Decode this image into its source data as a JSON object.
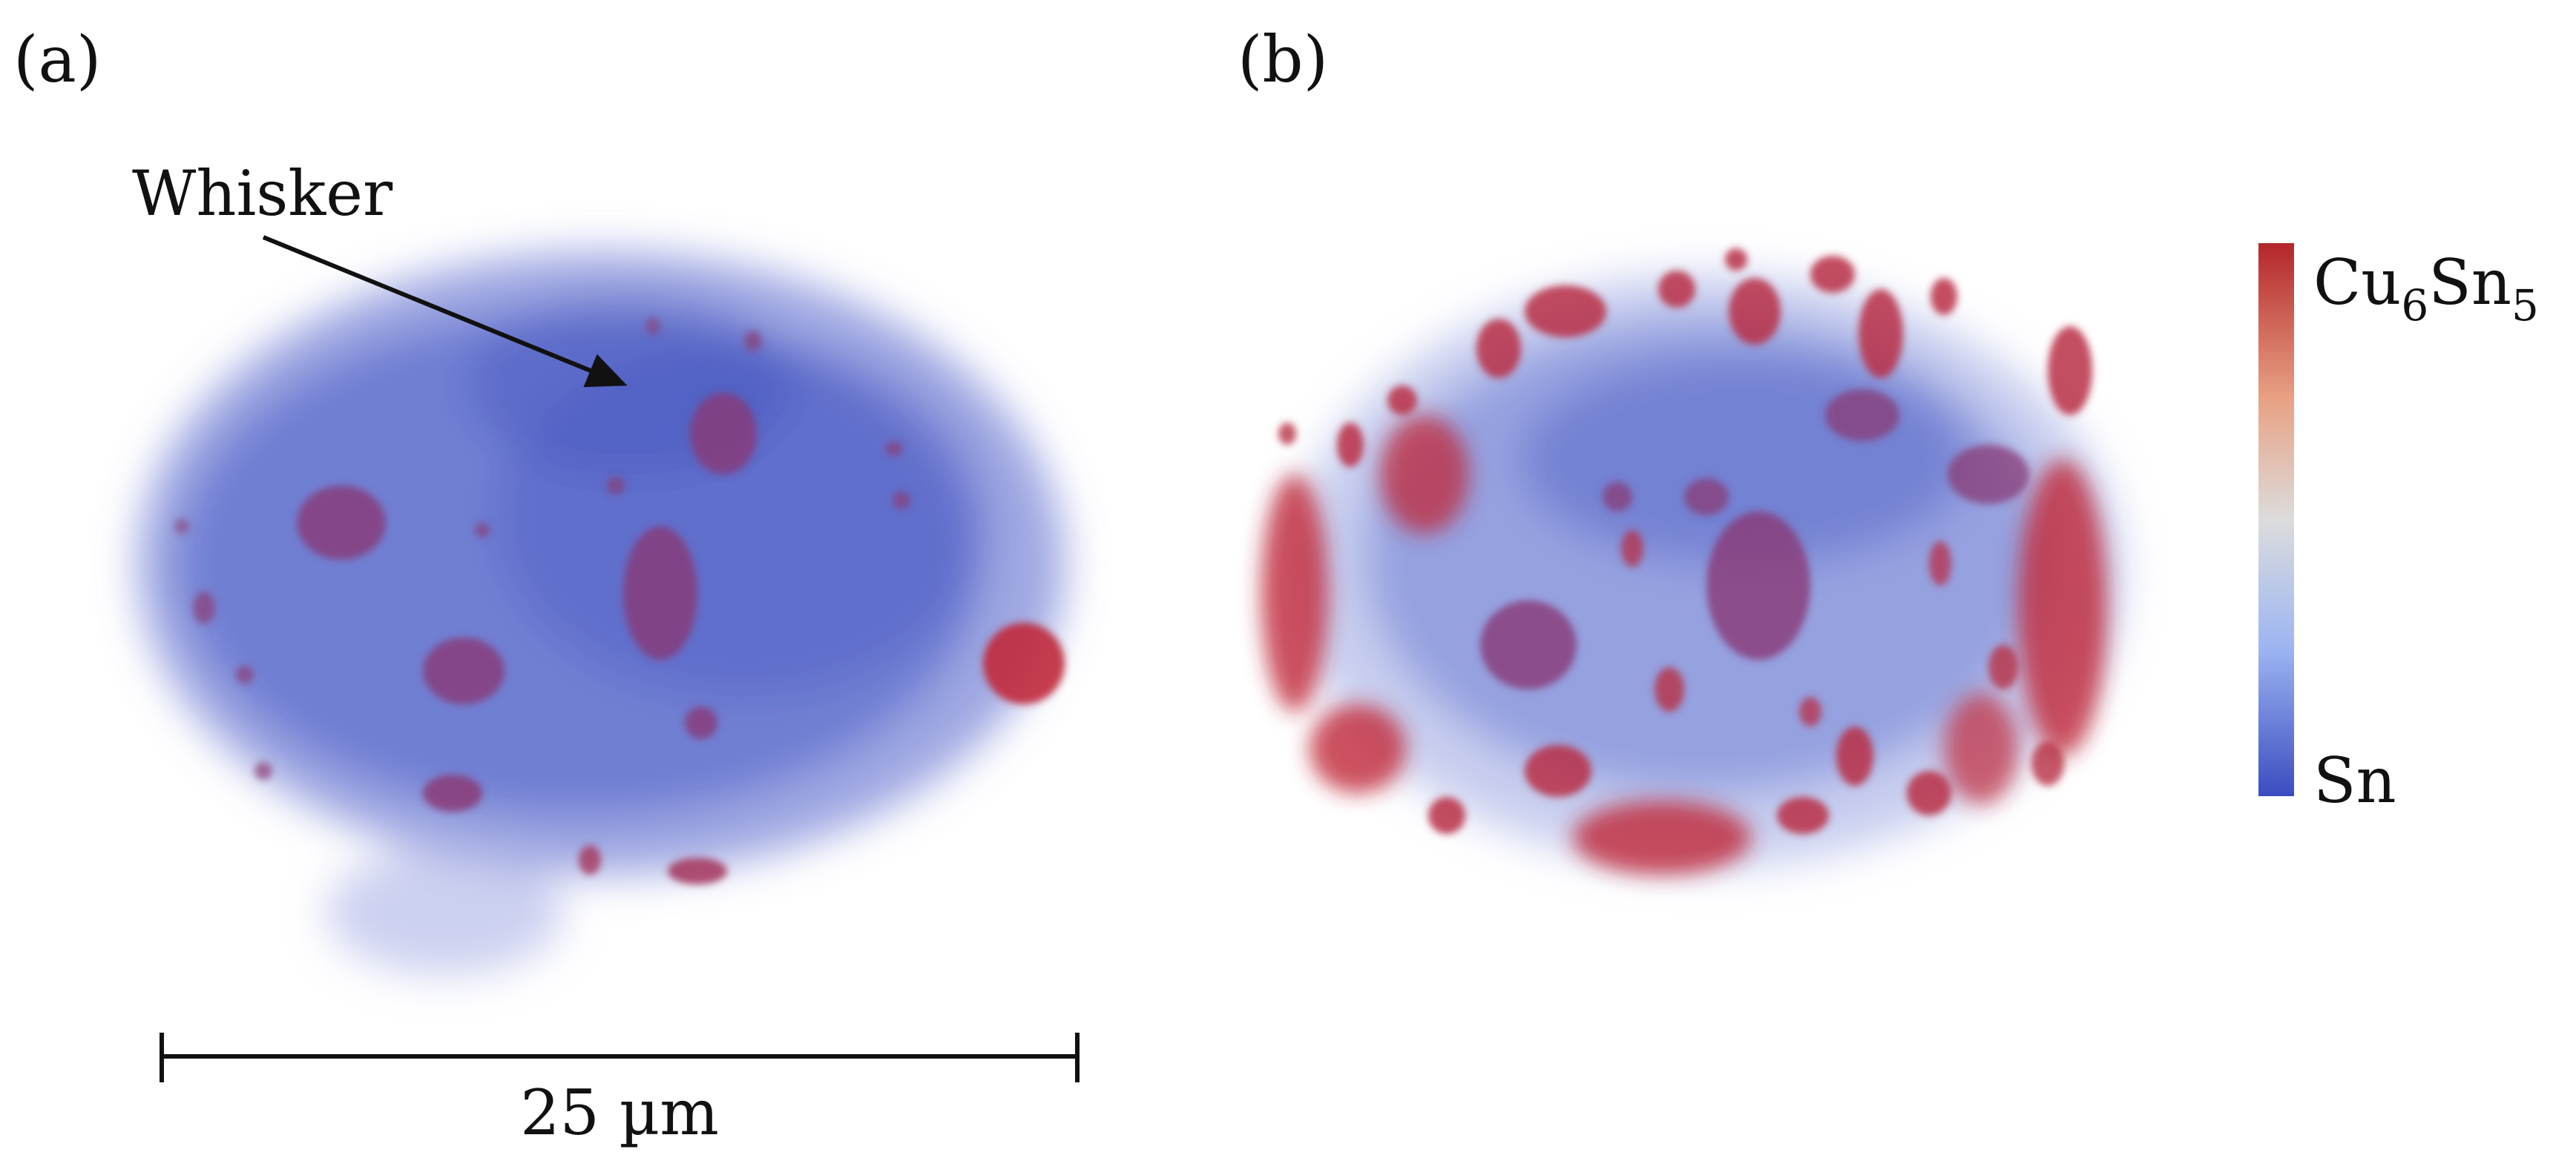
{
  "panels": [
    {
      "label": "(a)"
    },
    {
      "label": "(b)"
    }
  ],
  "annotation": {
    "text": "Whisker"
  },
  "scale_bar": {
    "text": "25 µm"
  },
  "colorbar": {
    "top_label": {
      "base1": "Cu",
      "sub1": "6",
      "base2": "Sn",
      "sub2": "5"
    },
    "bottom_label": "Sn",
    "colors": {
      "top": "#b3262b",
      "upper_mid": "#e8a183",
      "mid": "#dcdcdc",
      "lower_mid": "#9db6f2",
      "bottom": "#3b4cc0"
    }
  },
  "colors": {
    "sn_phase": "#5261c8",
    "cu6sn5_phase": "#b3262b"
  }
}
